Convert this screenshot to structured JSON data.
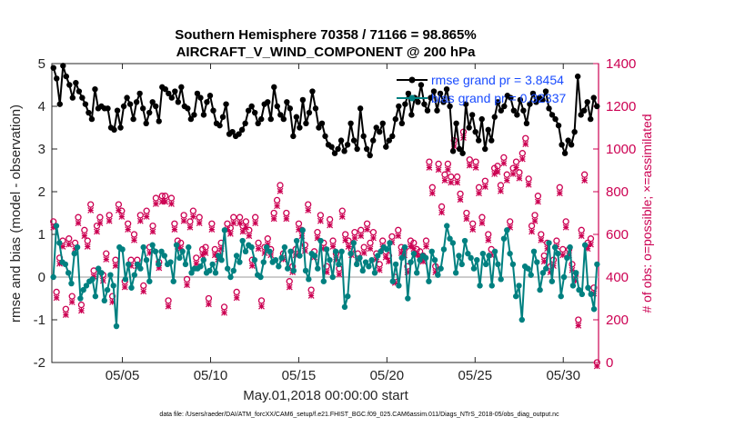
{
  "chart_data": {
    "type": "line",
    "title": "Southern Hemisphere 70358 / 71166 = 98.865%",
    "subtitle": "AIRCRAFT_V_WIND_COMPONENT @ 200 hPa",
    "xlabel": "May.01,2018 00:00:00 start",
    "ylabel": "rmse and bias (model - observation)",
    "y2label": "# of obs: o=possible; ×=assimilated",
    "footnote": "data file: /Users/raeder/DAI/ATM_forcXX/CAM6_setup/f.e21.FHIST_BGC.f09_025.CAM6assim.011/Diags_NTrS_2018-05/obs_diag_output.nc",
    "xlim": [
      1,
      32
    ],
    "ylim": [
      -2,
      5
    ],
    "y2lim": [
      0,
      1400
    ],
    "xticks": [
      5,
      10,
      15,
      20,
      25,
      30
    ],
    "xtick_labels": [
      "05/05",
      "05/10",
      "05/15",
      "05/20",
      "05/25",
      "05/30"
    ],
    "yticks": [
      -2,
      -1,
      0,
      1,
      2,
      3,
      4,
      5
    ],
    "y2ticks": [
      0,
      200,
      400,
      600,
      800,
      1000,
      1200,
      1400
    ],
    "colors": {
      "rmse": "#000000",
      "bias": "#008080",
      "obs": "#cc0052",
      "axis_right": "#cc0052",
      "zero_line": "#bbbbbb",
      "legend_text": "#1a4cff"
    },
    "series": [
      {
        "name": "rmse grand pr = 3.8454",
        "axis": "left",
        "values": [
          4.9,
          4.65,
          4.05,
          4.95,
          4.7,
          4.5,
          4.2,
          4.55,
          4.35,
          4.2,
          4.05,
          3.85,
          3.7,
          4.4,
          3.95,
          4.0,
          3.95,
          3.95,
          3.5,
          3.45,
          3.9,
          3.5,
          4.0,
          4.2,
          4.05,
          3.7,
          4.1,
          4.3,
          3.95,
          3.6,
          3.85,
          4.1,
          4.0,
          3.65,
          4.45,
          4.4,
          4.3,
          4.2,
          4.35,
          4.1,
          4.45,
          4.0,
          3.95,
          3.7,
          3.8,
          4.3,
          4.2,
          3.8,
          4.1,
          4.25,
          3.9,
          3.6,
          3.55,
          3.75,
          4.05,
          3.35,
          3.4,
          3.3,
          3.35,
          3.45,
          3.6,
          3.9,
          4.0,
          3.85,
          3.6,
          3.7,
          4.05,
          4.1,
          3.7,
          4.45,
          4.0,
          3.8,
          3.7,
          4.1,
          3.95,
          3.3,
          3.75,
          3.5,
          4.15,
          3.6,
          3.85,
          4.35,
          3.95,
          3.5,
          3.6,
          3.3,
          3.1,
          3.05,
          2.9,
          3.0,
          3.2,
          2.95,
          3.1,
          3.6,
          3.2,
          3.0,
          3.95,
          3.3,
          3.0,
          2.85,
          3.2,
          3.5,
          3.4,
          3.6,
          3.05,
          3.2,
          3.3,
          3.7,
          4.0,
          3.6,
          4.05,
          4.3,
          3.8,
          4.2,
          4.1,
          4.5,
          4.05,
          3.9,
          4.2,
          4.35,
          3.9,
          4.3,
          4.1,
          4.4,
          4.0,
          2.95,
          3.6,
          3.0,
          2.9,
          4.05,
          3.5,
          3.8,
          3.4,
          3.2,
          3.7,
          3.0,
          3.45,
          3.2,
          3.75,
          4.1,
          3.9,
          4.0,
          4.25,
          4.2,
          3.9,
          3.8,
          4.15,
          3.9,
          3.6,
          4.05,
          4.3,
          4.1,
          4.2,
          4.15,
          4.35,
          3.95,
          3.8,
          3.7,
          3.55,
          3.1,
          2.9,
          3.2,
          3.1,
          3.4,
          4.7,
          3.8,
          3.9,
          4.1,
          3.7,
          4.2,
          4.0
        ]
      },
      {
        "name": "bias grand pr = 0.32337",
        "axis": "left",
        "values": [
          0.0,
          1.2,
          0.8,
          0.35,
          0.3,
          0.1,
          -0.15,
          0.55,
          0.7,
          -0.5,
          -0.3,
          -0.2,
          -0.1,
          -0.05,
          -0.45,
          0.2,
          0.1,
          -0.55,
          -0.3,
          0.05,
          -0.2,
          -1.15,
          0.7,
          0.65,
          -0.05,
          0.3,
          -0.25,
          0.05,
          0.3,
          0.2,
          0.7,
          0.4,
          -0.1,
          0.75,
          0.6,
          0.3,
          0.6,
          0.5,
          0.3,
          0.35,
          -0.1,
          0.75,
          0.45,
          0.6,
          0.3,
          0.7,
          0.1,
          0.2,
          0.2,
          0.25,
          0.4,
          0.1,
          0.15,
          0.3,
          0.1,
          0.5,
          0.4,
          1.1,
          0.2,
          0.0,
          0.15,
          0.5,
          0.35,
          0.85,
          0.6,
          0.75,
          0.7,
          0.4,
          0.05,
          0.0,
          0.35,
          0.7,
          0.6,
          0.35,
          0.4,
          0.25,
          0.45,
          0.7,
          0.2,
          0.6,
          0.15,
          0.85,
          0.5,
          1.1,
          0.15,
          -0.05,
          0.55,
          0.5,
          0.2,
          0.85,
          -0.1,
          0.65,
          0.4,
          0.0,
          0.6,
          0.3,
          0.6,
          -0.7,
          -0.45,
          0.55,
          0.8,
          0.3,
          0.45,
          0.15,
          0.35,
          0.25,
          0.4,
          0.1,
          0.5,
          0.6,
          0.7,
          0.65,
          0.8,
          -0.1,
          0.3,
          -0.2,
          0.45,
          0.7,
          -0.5,
          0.35,
          0.55,
          0.1,
          0.4,
          0.5,
          0.45,
          -0.1,
          0.6,
          0.4,
          0.05,
          0.2,
          0.65,
          1.2,
          0.9,
          0.8,
          0.1,
          0.5,
          0.3,
          0.85,
          0.55,
          0.45,
          0.2,
          0.4,
          -0.2,
          0.55,
          0.3,
          0.5,
          -0.2,
          0.6,
          0.3,
          -0.05,
          0.9,
          1.1,
          0.55,
          0.3,
          -0.45,
          -0.2,
          -1.0,
          0.25,
          0.2,
          0.05,
          0.6,
          0.35,
          -0.3,
          0.1,
          0.2,
          0.8,
          -0.1,
          0.7,
          0.55,
          -0.45,
          0.0,
          0.45,
          0.7,
          -0.2,
          0.1,
          -0.3,
          -0.4,
          0.75,
          -0.25,
          -0.4,
          -0.75,
          0.3
        ]
      },
      {
        "name": "obs possible",
        "axis": "right",
        "marker": "o",
        "values": [
          660,
          330,
          490,
          570,
          250,
          580,
          310,
          560,
          680,
          270,
          620,
          570,
          740,
          430,
          640,
          680,
          410,
          510,
          690,
          310,
          480,
          740,
          710,
          380,
          650,
          480,
          600,
          480,
          690,
          360,
          710,
          540,
          640,
          770,
          470,
          780,
          780,
          290,
          770,
          650,
          570,
          560,
          690,
          390,
          660,
          710,
          490,
          680,
          530,
          540,
          300,
          650,
          530,
          510,
          560,
          260,
          650,
          630,
          680,
          330,
          680,
          640,
          660,
          620,
          480,
          680,
          560,
          290,
          540,
          580,
          530,
          700,
          760,
          830,
          510,
          700,
          380,
          450,
          530,
          650,
          620,
          550,
          740,
          340,
          520,
          610,
          690,
          560,
          450,
          670,
          570,
          510,
          440,
          710,
          600,
          570,
          530,
          610,
          510,
          620,
          540,
          650,
          560,
          610,
          510,
          460,
          570,
          520,
          500,
          590,
          400,
          620,
          540,
          530,
          450,
          570,
          560,
          530,
          520,
          500,
          570,
          940,
          820,
          450,
          930,
          730,
          880,
          930,
          870,
          1040,
          870,
          790,
          1080,
          700,
          950,
          650,
          940,
          820,
          680,
          850,
          600,
          530,
          910,
          920,
          830,
          960,
          880,
          660,
          910,
          940,
          890,
          980,
          1050,
          860,
          640,
          690,
          780,
          600,
          500,
          560,
          450,
          480,
          570,
          820,
          530,
          660,
          530,
          460,
          410,
          200,
          620,
          880,
          560,
          580,
          350,
          0
        ]
      },
      {
        "name": "obs assimilated",
        "axis": "right",
        "marker": "x",
        "values": [
          650,
          320,
          480,
          560,
          240,
          570,
          300,
          550,
          670,
          260,
          610,
          560,
          730,
          420,
          630,
          670,
          400,
          500,
          680,
          300,
          470,
          730,
          700,
          370,
          640,
          470,
          590,
          470,
          680,
          350,
          700,
          530,
          630,
          760,
          460,
          770,
          770,
          280,
          760,
          640,
          560,
          550,
          680,
          380,
          650,
          700,
          480,
          670,
          520,
          530,
          290,
          640,
          520,
          500,
          550,
          250,
          640,
          620,
          670,
          320,
          670,
          630,
          650,
          610,
          470,
          670,
          550,
          280,
          530,
          570,
          520,
          690,
          750,
          820,
          500,
          690,
          370,
          440,
          520,
          640,
          610,
          540,
          730,
          330,
          510,
          600,
          680,
          550,
          440,
          660,
          560,
          500,
          430,
          700,
          590,
          560,
          520,
          600,
          500,
          610,
          530,
          640,
          550,
          600,
          500,
          450,
          560,
          510,
          490,
          580,
          390,
          610,
          530,
          520,
          440,
          560,
          550,
          520,
          510,
          490,
          560,
          930,
          810,
          440,
          920,
          720,
          870,
          920,
          860,
          1030,
          860,
          780,
          1070,
          690,
          940,
          640,
          930,
          810,
          670,
          840,
          590,
          520,
          900,
          910,
          820,
          950,
          870,
          650,
          900,
          930,
          880,
          970,
          1040,
          850,
          630,
          680,
          770,
          590,
          490,
          550,
          440,
          470,
          560,
          810,
          520,
          650,
          520,
          450,
          400,
          190,
          610,
          870,
          550,
          570,
          340,
          0
        ]
      }
    ]
  }
}
